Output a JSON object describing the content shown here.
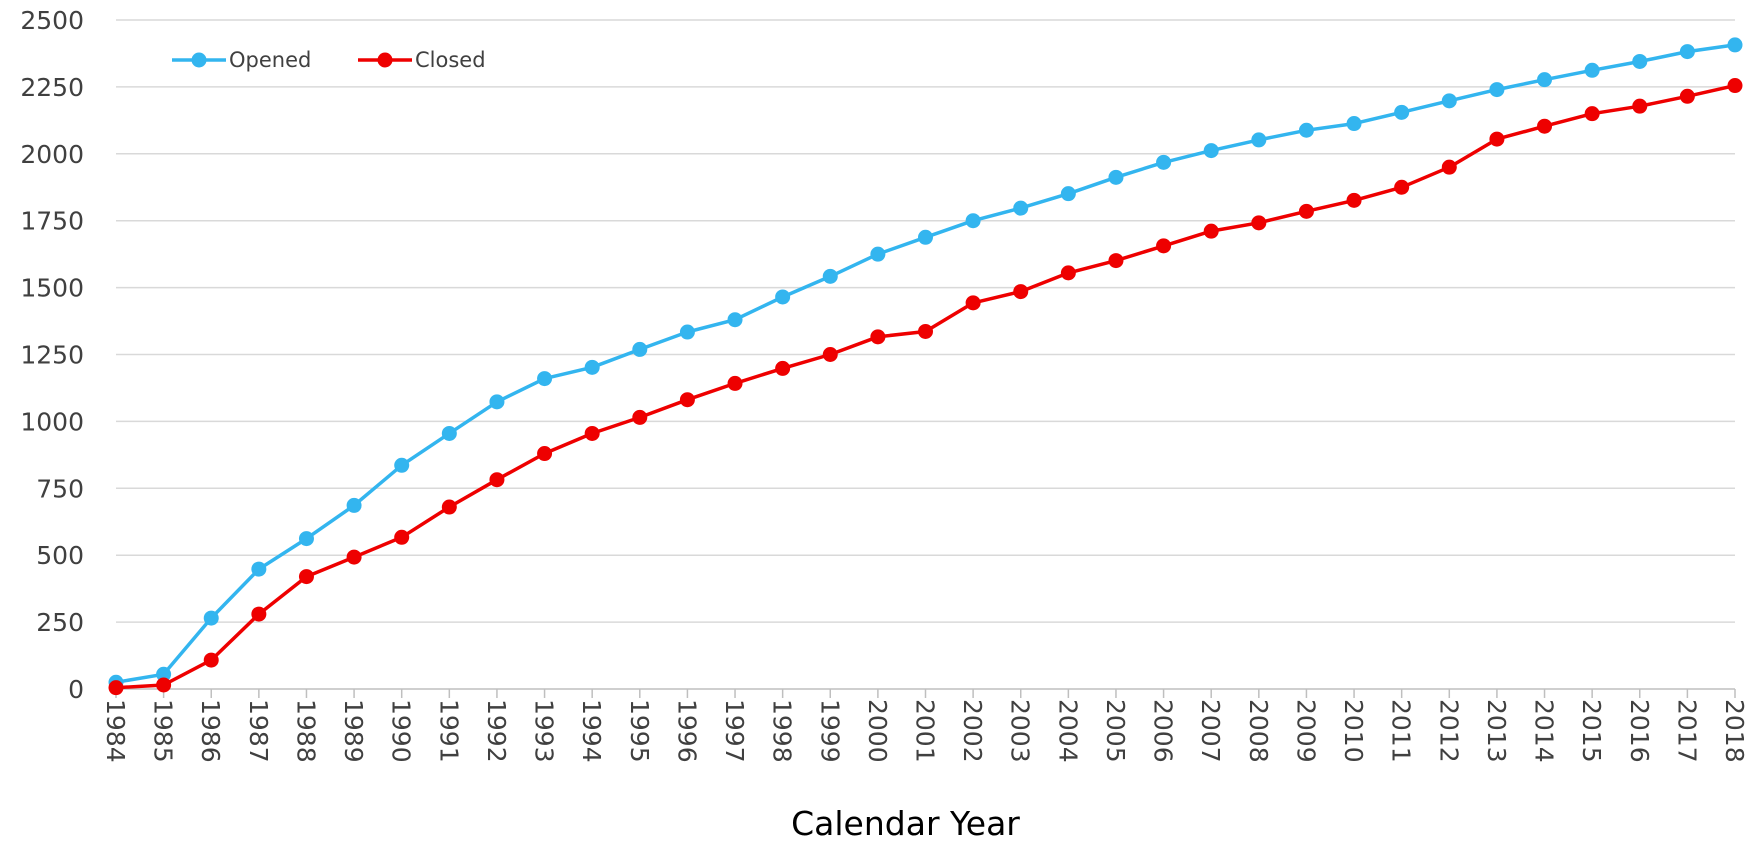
{
  "chart_data": {
    "type": "line",
    "title": "",
    "xlabel": "Calendar Year",
    "ylabel": "",
    "ylim": [
      0,
      2500
    ],
    "yticks": [
      0,
      250,
      500,
      750,
      1000,
      1250,
      1500,
      1750,
      2000,
      2250,
      2500
    ],
    "grid": true,
    "legend_position": "top-left",
    "categories": [
      "1984",
      "1985",
      "1986",
      "1987",
      "1988",
      "1989",
      "1990",
      "1991",
      "1992",
      "1993",
      "1994",
      "1995",
      "1996",
      "1997",
      "1998",
      "1999",
      "2000",
      "2001",
      "2002",
      "2003",
      "2004",
      "2005",
      "2006",
      "2007",
      "2008",
      "2009",
      "2010",
      "2011",
      "2012",
      "2013",
      "2014",
      "2015",
      "2016",
      "2017",
      "2018"
    ],
    "series": [
      {
        "name": "Opened",
        "color": "#33b5ef",
        "values": [
          25,
          55,
          265,
          448,
          562,
          686,
          836,
          955,
          1073,
          1160,
          1202,
          1269,
          1334,
          1380,
          1465,
          1542,
          1625,
          1688,
          1750,
          1797,
          1851,
          1912,
          1968,
          2012,
          2052,
          2088,
          2113,
          2155,
          2198,
          2240,
          2277,
          2312,
          2345,
          2382,
          2407
        ]
      },
      {
        "name": "Closed",
        "color": "#ee0000",
        "values": [
          5,
          15,
          108,
          280,
          420,
          493,
          567,
          680,
          782,
          880,
          955,
          1015,
          1081,
          1142,
          1198,
          1250,
          1316,
          1336,
          1443,
          1485,
          1555,
          1601,
          1656,
          1711,
          1742,
          1785,
          1826,
          1875,
          1950,
          2055,
          2103,
          2150,
          2178,
          2215,
          2255
        ]
      }
    ]
  }
}
